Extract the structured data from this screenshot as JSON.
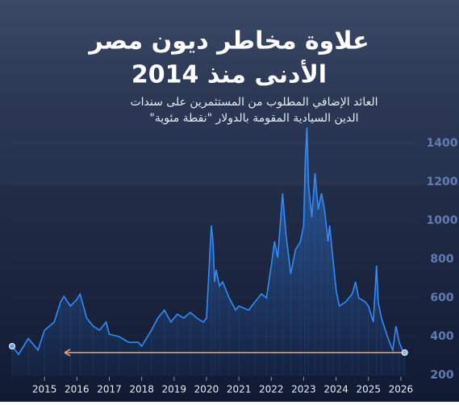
{
  "chart_data": {
    "type": "line",
    "title_lines": [
      "علاوة مخاطر ديون مصر",
      "الأدنى منذ 2014"
    ],
    "subtitle_lines": [
      "العائد الإضافي المطلوب من المستثمرين على سندات",
      "الدين السيادية المقومة بالدولار \"نقطة مئوية\""
    ],
    "x": [
      2014.0,
      2014.2,
      2014.5,
      2014.8,
      2015.0,
      2015.3,
      2015.5,
      2015.6,
      2015.8,
      2016.0,
      2016.1,
      2016.3,
      2016.5,
      2016.7,
      2016.9,
      2017.0,
      2017.3,
      2017.6,
      2017.9,
      2018.0,
      2018.3,
      2018.5,
      2018.7,
      2018.9,
      2019.1,
      2019.3,
      2019.5,
      2019.7,
      2019.9,
      2020.0,
      2020.15,
      2020.2,
      2020.25,
      2020.3,
      2020.4,
      2020.5,
      2020.7,
      2020.9,
      2021.0,
      2021.3,
      2021.5,
      2021.7,
      2021.85,
      2022.0,
      2022.1,
      2022.2,
      2022.35,
      2022.45,
      2022.6,
      2022.75,
      2022.9,
      2023.0,
      2023.05,
      2023.1,
      2023.15,
      2023.25,
      2023.35,
      2023.45,
      2023.55,
      2023.65,
      2023.75,
      2023.8,
      2023.9,
      2024.0,
      2024.1,
      2024.3,
      2024.5,
      2024.6,
      2024.7,
      2024.9,
      2025.0,
      2025.15,
      2025.25,
      2025.3,
      2025.4,
      2025.6,
      2025.75,
      2025.85,
      2025.95,
      2026.05,
      2026.12
    ],
    "series": [
      {
        "color": "#2f8cff",
        "values": [
          350,
          308,
          390,
          330,
          433,
          475,
          580,
          608,
          558,
          592,
          620,
          496,
          454,
          433,
          475,
          412,
          400,
          370,
          370,
          350,
          433,
          496,
          537,
          475,
          516,
          496,
          525,
          496,
          475,
          496,
          975,
          892,
          683,
          746,
          662,
          683,
          600,
          537,
          558,
          537,
          580,
          621,
          600,
          767,
          892,
          808,
          1142,
          933,
          725,
          850,
          892,
          975,
          1308,
          1483,
          1183,
          1017,
          1246,
          1058,
          1142,
          1050,
          892,
          975,
          808,
          642,
          558,
          580,
          621,
          683,
          600,
          580,
          558,
          475,
          767,
          580,
          496,
          392,
          329,
          454,
          370,
          329,
          317
        ]
      }
    ],
    "xlim": [
      2014,
      2026.5
    ],
    "ylim": [
      200,
      1500
    ],
    "xticks": [
      2015,
      2016,
      2017,
      2018,
      2019,
      2020,
      2021,
      2022,
      2023,
      2024,
      2025,
      2026
    ],
    "yticks": [
      200,
      400,
      600,
      800,
      1000,
      1200,
      1400
    ],
    "marker_color": "#e8a77a"
  }
}
